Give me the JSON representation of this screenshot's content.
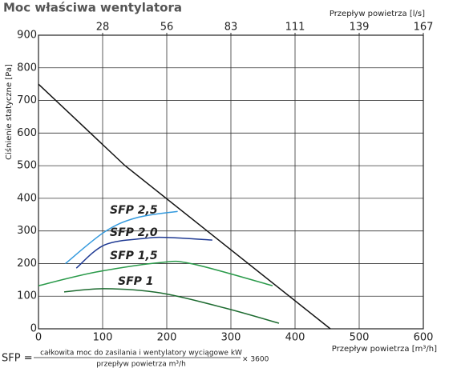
{
  "chart_data": {
    "type": "line",
    "title": "Moc właściwa wentylatora",
    "xlabel": "Przepływ powietrza [m³/h]",
    "x2label": "Przepływ powietrza [l/s]",
    "ylabel": "Ciśnienie statyczne [Pa]",
    "xlim": [
      0,
      600
    ],
    "xticks": [
      0,
      100,
      200,
      300,
      400,
      500,
      600
    ],
    "x2lim": [
      0,
      166.67
    ],
    "x2ticks": [
      {
        "value": 27.78,
        "label": "28"
      },
      {
        "value": 55.56,
        "label": "56"
      },
      {
        "value": 83.33,
        "label": "83"
      },
      {
        "value": 111.11,
        "label": "111"
      },
      {
        "value": 138.89,
        "label": "139"
      },
      {
        "value": 166.67,
        "label": "167"
      }
    ],
    "ylim": [
      0,
      900
    ],
    "yticks": [
      0,
      100,
      200,
      300,
      400,
      500,
      600,
      700,
      800,
      900
    ],
    "grid": true,
    "series": [
      {
        "color": "#111111",
        "x": [
          0,
          135,
          455
        ],
        "values": [
          750,
          500,
          0
        ]
      },
      {
        "name": "SFP 2,5",
        "color": "#3399dd",
        "x": [
          42,
          103,
          152,
          217
        ],
        "values": [
          200,
          297,
          340,
          360
        ]
      },
      {
        "name": "SFP 2,0",
        "color": "#1f3a93",
        "x": [
          59,
          103,
          165,
          202,
          271
        ],
        "values": [
          186,
          257,
          277,
          280,
          272
        ]
      },
      {
        "name": "SFP 1,5",
        "color": "#2a9a4a",
        "x": [
          0,
          90,
          190,
          240,
          365
        ],
        "values": [
          132,
          174,
          203,
          199,
          132
        ]
      },
      {
        "name": "SFP 1",
        "color": "#1d6b30",
        "x": [
          40,
          103,
          190,
          290,
          375
        ],
        "values": [
          113,
          123,
          110,
          64,
          17
        ]
      }
    ],
    "formula": {
      "lhs": "SFP =",
      "numerator": "całkowita moc do zasilania i wentylatory wyciągowe kW",
      "denominator": "przepływ powietrza m³/h",
      "factor": "× 3600"
    }
  }
}
